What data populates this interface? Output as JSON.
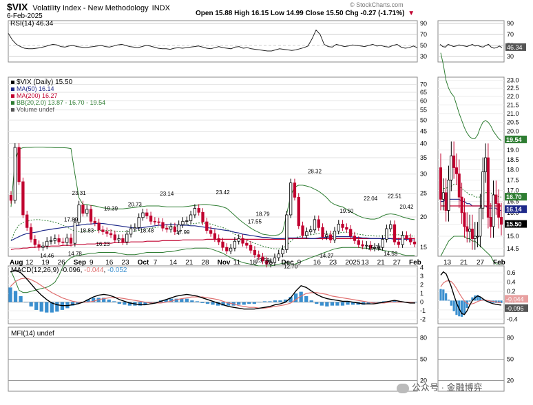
{
  "header": {
    "symbol": "$VIX",
    "name": "Volatility Index - New Methodology",
    "exchange": "INDX",
    "date": "6-Feb-2025",
    "ohlc": "Open 15.88  High 16.15  Low 14.99  Close 15.50  Chg -0.27 (-1.71%)",
    "arrow": "▼",
    "watermark": "© StockCharts.com"
  },
  "colors": {
    "up": "#000000",
    "down": "#c0002f",
    "ma50": "#1f2a8a",
    "ma200": "#c0002f",
    "bb": "#2e7d32",
    "hist": "#3a8fcf",
    "macd": "#000000",
    "signal": "#e07070",
    "grid": "#cccccc"
  },
  "chart_data": [
    {
      "type": "line",
      "panel": "rsi",
      "legend": "RSI(14) 46.34",
      "ylim": [
        20,
        95
      ],
      "ticks": [
        "90",
        "70",
        "50",
        "30"
      ],
      "last_label": "46.34",
      "series": [
        {
          "name": "RSI(14)",
          "values": [
            72,
            60,
            52,
            48,
            45,
            44,
            44,
            45,
            46,
            48,
            50,
            52,
            51,
            48,
            47,
            49,
            50,
            48,
            47,
            46,
            47,
            48,
            49,
            50,
            48,
            47,
            49,
            51,
            52,
            50,
            48,
            47,
            46,
            48,
            50,
            49,
            47,
            45,
            44,
            44,
            43,
            45,
            46,
            45,
            46,
            47,
            48,
            49,
            47,
            45,
            44,
            46,
            48,
            46,
            45,
            44,
            47,
            48,
            45,
            46,
            44,
            43,
            42,
            41,
            40,
            40,
            42,
            44,
            43,
            42,
            41,
            42,
            44,
            46,
            49,
            62,
            78,
            70,
            52,
            48,
            47,
            52,
            50,
            48,
            49,
            51,
            50,
            49,
            48,
            50,
            52,
            49,
            50,
            48,
            47,
            50,
            52,
            47,
            45,
            46,
            49,
            46
          ]
        }
      ]
    },
    {
      "type": "candlestick",
      "panel": "price",
      "legend": [
        "$VIX (Daily) 15.50",
        "MA(50) 16.14",
        "MA(200) 16.27",
        "BB(20,2.0) 13.87 - 16.70 - 19.54",
        "Volume undef"
      ],
      "scale": "log",
      "ylim": [
        13.8,
        75
      ],
      "ticks": [
        "70",
        "65",
        "60",
        "55",
        "50",
        "45",
        "40",
        "35",
        "30",
        "25",
        "20",
        "15"
      ],
      "right_ticks": [
        "23.0",
        "22.5",
        "22.0",
        "21.5",
        "21.0",
        "20.5",
        "20.0",
        "19.5",
        "19.0",
        "18.5",
        "18.0",
        "17.5",
        "17.0",
        "16.5",
        "16.0",
        "15.5",
        "15.0",
        "14.5"
      ],
      "right_badges": [
        {
          "text": "19.54",
          "value": 19.54,
          "color": "#2e7d32"
        },
        {
          "text": "16.70",
          "value": 16.7,
          "color": "#2e7d32"
        },
        {
          "text": "16.14",
          "value": 16.14,
          "color": "#1f2a8a"
        },
        {
          "text": "15.50",
          "value": 15.5,
          "color": "#000000"
        }
      ],
      "x_labels": [
        "Aug",
        "12",
        "19",
        "26",
        "Sep",
        "9",
        "16",
        "23",
        "Oct",
        "7",
        "14",
        "21",
        "28",
        "Nov",
        "11",
        "18",
        "25",
        "Dec",
        "9",
        "16",
        "23",
        "2025",
        "13",
        "21",
        "27",
        "Feb"
      ],
      "zoom_x_labels": [
        "13",
        "21",
        "27",
        "Feb"
      ],
      "close": [
        23.4,
        38.6,
        27.9,
        20.4,
        18.1,
        16.2,
        15.4,
        15.0,
        15.2,
        15.9,
        16.0,
        16.3,
        15.8,
        15.7,
        16.4,
        15.6,
        19.0,
        22.4,
        20.7,
        21.5,
        19.2,
        18.9,
        17.7,
        17.4,
        17.1,
        16.9,
        16.1,
        16.3,
        15.8,
        17.0,
        17.9,
        18.1,
        19.9,
        20.8,
        20.2,
        19.2,
        19.1,
        19.0,
        18.0,
        17.8,
        18.2,
        17.4,
        18.6,
        19.2,
        19.3,
        20.4,
        21.7,
        20.9,
        19.1,
        17.6,
        17.1,
        16.3,
        15.8,
        15.0,
        14.5,
        14.9,
        15.9,
        16.3,
        15.6,
        15.3,
        14.6,
        14.0,
        13.7,
        13.2,
        12.8,
        13.0,
        13.6,
        14.1,
        14.7,
        20.4,
        27.6,
        24.1,
        18.4,
        16.8,
        17.4,
        17.7,
        19.5,
        18.1,
        16.6,
        16.9,
        16.1,
        17.5,
        18.7,
        18.1,
        17.8,
        16.7,
        16.0,
        15.4,
        15.2,
        15.3,
        14.9,
        15.0,
        15.0,
        16.2,
        17.9,
        18.6,
        15.8,
        15.4,
        16.8,
        16.4,
        15.8,
        15.5
      ],
      "ma50": [
        16.0,
        16.3,
        16.6,
        16.9,
        17.1,
        17.2,
        17.3,
        17.4,
        17.6,
        17.7,
        17.8,
        17.9,
        18.0,
        18.1,
        18.2,
        18.3,
        18.4,
        18.5,
        18.6,
        18.7,
        18.7,
        18.8,
        18.8,
        18.8,
        18.7,
        18.6,
        18.5,
        18.4,
        18.3,
        18.2,
        18.1,
        18.0,
        18.0,
        18.1,
        18.2,
        18.3,
        18.4,
        18.5,
        18.5,
        18.6,
        18.6,
        18.6,
        18.5,
        18.5,
        18.5,
        18.4,
        18.4,
        18.3,
        18.2,
        18.1,
        18.0,
        17.9,
        17.8,
        17.7,
        17.6,
        17.5,
        17.3,
        17.2,
        17.0,
        16.9,
        16.8,
        16.7,
        16.6,
        16.5,
        16.5,
        16.4,
        16.3,
        16.3,
        16.3,
        16.4,
        16.4,
        16.4,
        16.4,
        16.4,
        16.4,
        16.3,
        16.3,
        16.4,
        16.5,
        16.5,
        16.6,
        16.6,
        16.6,
        16.6,
        16.6,
        16.6,
        16.5,
        16.5,
        16.4,
        16.4,
        16.3,
        16.3,
        16.3,
        16.3,
        16.3,
        16.3,
        16.2,
        16.2,
        16.2,
        16.2,
        16.1,
        16.1
      ],
      "ma200": [
        14.7,
        14.8,
        14.8,
        14.9,
        14.9,
        15.0,
        15.0,
        15.1,
        15.1,
        15.1,
        15.2,
        15.2,
        15.2,
        15.3,
        15.3,
        15.3,
        15.4,
        15.4,
        15.4,
        15.5,
        15.5,
        15.5,
        15.6,
        15.6,
        15.6,
        15.6,
        15.7,
        15.7,
        15.7,
        15.7,
        15.8,
        15.8,
        15.8,
        15.8,
        15.9,
        15.9,
        15.9,
        15.9,
        16.0,
        16.0,
        16.0,
        16.0,
        16.0,
        16.1,
        16.1,
        16.1,
        16.1,
        16.1,
        16.1,
        16.2,
        16.2,
        16.2,
        16.2,
        16.2,
        16.2,
        16.2,
        16.2,
        16.2,
        16.2,
        16.2,
        16.2,
        16.2,
        16.2,
        16.2,
        16.2,
        16.2,
        16.2,
        16.2,
        16.2,
        16.2,
        16.3,
        16.3,
        16.3,
        16.3,
        16.3,
        16.3,
        16.3,
        16.3,
        16.3,
        16.3,
        16.3,
        16.3,
        16.3,
        16.3,
        16.3,
        16.3,
        16.3,
        16.3,
        16.3,
        16.3,
        16.3,
        16.3,
        16.3,
        16.3,
        16.3,
        16.3,
        16.3,
        16.3,
        16.3,
        16.3,
        16.3,
        16.3
      ],
      "bb_upper": [
        22.0,
        34.0,
        38.0,
        38.5,
        38.6,
        38.6,
        38.7,
        38.7,
        38.7,
        38.6,
        38.6,
        38.5,
        38.5,
        38.5,
        38.4,
        38.2,
        30.0,
        24.0,
        22.5,
        22.5,
        22.3,
        22.2,
        22.0,
        21.8,
        21.7,
        21.6,
        21.6,
        21.6,
        21.6,
        21.7,
        21.8,
        21.9,
        22.0,
        22.1,
        22.2,
        22.2,
        22.2,
        22.2,
        22.1,
        22.0,
        22.0,
        22.0,
        22.0,
        22.0,
        22.1,
        22.2,
        22.3,
        22.4,
        22.5,
        22.5,
        22.4,
        22.3,
        22.2,
        22.0,
        21.7,
        21.0,
        20.3,
        19.6,
        19.0,
        18.5,
        18.0,
        17.6,
        17.3,
        17.0,
        16.9,
        16.8,
        16.8,
        16.9,
        17.4,
        20.5,
        24.5,
        26.5,
        27.0,
        27.0,
        26.8,
        26.5,
        26.0,
        25.5,
        24.8,
        24.0,
        23.0,
        22.5,
        22.2,
        22.0,
        21.5,
        21.0,
        20.6,
        20.2,
        19.9,
        19.7,
        19.6,
        19.6,
        19.8,
        20.2,
        20.5,
        20.6,
        20.5,
        20.3,
        20.0,
        19.8,
        19.6,
        19.5
      ],
      "bb_mid": [
        16.0,
        17.5,
        18.5,
        19.0,
        19.2,
        19.4,
        19.5,
        19.5,
        19.4,
        19.3,
        19.2,
        19.0,
        18.8,
        18.5,
        18.2,
        17.8,
        17.5,
        17.4,
        17.4,
        17.5,
        17.6,
        17.6,
        17.6,
        17.6,
        17.6,
        17.6,
        17.5,
        17.4,
        17.4,
        17.4,
        17.4,
        17.5,
        17.6,
        17.8,
        17.9,
        18.0,
        18.1,
        18.2,
        18.2,
        18.2,
        18.3,
        18.3,
        18.4,
        18.5,
        18.6,
        18.7,
        18.8,
        18.9,
        18.9,
        18.8,
        18.7,
        18.5,
        18.3,
        18.1,
        17.8,
        17.4,
        17.0,
        16.7,
        16.4,
        16.1,
        15.8,
        15.6,
        15.4,
        15.2,
        15.0,
        14.9,
        14.8,
        14.8,
        14.9,
        15.3,
        15.9,
        16.4,
        16.6,
        16.7,
        16.8,
        16.9,
        17.0,
        17.1,
        17.1,
        17.1,
        17.1,
        17.2,
        17.2,
        17.3,
        17.3,
        17.2,
        17.1,
        17.0,
        16.9,
        16.8,
        16.8,
        16.7,
        16.7,
        16.7,
        16.8,
        16.9,
        16.9,
        16.9,
        16.8,
        16.8,
        16.7,
        16.7
      ],
      "bb_lower": [
        12.0,
        11.0,
        10.0,
        9.8,
        9.8,
        9.9,
        10.0,
        10.1,
        10.2,
        10.3,
        10.5,
        10.8,
        11.5,
        12.5,
        13.2,
        13.6,
        13.8,
        13.9,
        14.0,
        14.1,
        14.2,
        14.2,
        14.3,
        14.3,
        14.3,
        14.3,
        14.3,
        14.2,
        14.1,
        14.0,
        14.0,
        14.0,
        14.1,
        14.2,
        14.3,
        14.3,
        14.3,
        14.3,
        14.3,
        14.4,
        14.4,
        14.5,
        14.6,
        14.7,
        14.8,
        14.8,
        14.9,
        14.9,
        14.9,
        14.9,
        14.8,
        14.6,
        14.4,
        14.2,
        13.9,
        13.6,
        13.4,
        13.2,
        13.0,
        12.9,
        12.8,
        12.7,
        12.6,
        12.6,
        12.6,
        12.6,
        12.7,
        12.8,
        12.9,
        13.0,
        12.8,
        12.8,
        13.0,
        13.2,
        13.4,
        13.6,
        13.8,
        14.0,
        14.2,
        14.4,
        14.6,
        14.8,
        14.9,
        15.0,
        15.0,
        15.0,
        15.0,
        15.0,
        14.9,
        14.9,
        14.8,
        14.8,
        14.7,
        14.6,
        14.5,
        14.4,
        14.3,
        14.2,
        14.0,
        13.9,
        13.9,
        13.9
      ],
      "annotations": [
        {
          "text": "23.31",
          "i": 23,
          "v": 24.6
        },
        {
          "text": "17.89",
          "i": 20,
          "v": 19.2
        },
        {
          "text": "18.83",
          "i": 25,
          "v": 17.3
        },
        {
          "text": "19.39",
          "i": 33,
          "v": 21.3
        },
        {
          "text": "16.23",
          "i": 31,
          "v": 15.2
        },
        {
          "text": "20.73",
          "i": 42,
          "v": 22.1
        },
        {
          "text": "18.48",
          "i": 45,
          "v": 17.3
        },
        {
          "text": "23.14",
          "i": 52,
          "v": 24.5
        },
        {
          "text": "17.99",
          "i": 58,
          "v": 17.0
        },
        {
          "text": "23.42",
          "i": 71,
          "v": 24.8
        },
        {
          "text": "17.55",
          "i": 81,
          "v": 18.8
        },
        {
          "text": "18.79",
          "i": 84,
          "v": 20.2
        },
        {
          "text": "13.59",
          "i": 84,
          "v": 13.0
        },
        {
          "text": "12.70",
          "i": 94,
          "v": 12.3
        },
        {
          "text": "28.32",
          "i": 101,
          "v": 30.2
        },
        {
          "text": "14.46",
          "i": 12,
          "v": 13.6
        },
        {
          "text": "14.78",
          "i": 22,
          "v": 13.9
        },
        {
          "text": "14.27",
          "i": 106,
          "v": 13.6
        },
        {
          "text": "19.50",
          "i": 112,
          "v": 20.8
        },
        {
          "text": "15.71",
          "i": 121,
          "v": 14.7
        },
        {
          "text": "22.04",
          "i": 120,
          "v": 23.4
        },
        {
          "text": "22.51",
          "i": 128,
          "v": 23.9
        },
        {
          "text": "14.58",
          "i": 127,
          "v": 13.9
        },
        {
          "text": "20.42",
          "i": 132,
          "v": 21.6
        }
      ]
    },
    {
      "type": "bar",
      "panel": "macd",
      "legend_prefix": "MACD(12,26,9) ",
      "legend_values": [
        "-0.096",
        "-0.044",
        "-0.052"
      ],
      "ylim": [
        -2.5,
        4.2
      ],
      "ticks": [
        "4",
        "3",
        "2",
        "1",
        "0",
        "-1",
        "-2"
      ],
      "zoom_ticks": [
        "0.6",
        "0.4",
        "0.2",
        "0.0",
        "-0.2",
        "-0.4"
      ],
      "zoom_badges": [
        "-0.044",
        "-0.096"
      ],
      "macd": [
        3.5,
        3.7,
        3.4,
        2.8,
        2.1,
        1.4,
        0.8,
        0.3,
        -0.1,
        -0.3,
        -0.4,
        -0.4,
        -0.3,
        -0.2,
        0.0,
        0.3,
        0.6,
        0.8,
        0.9,
        0.8,
        0.6,
        0.3,
        0.1,
        -0.1,
        -0.2,
        -0.3,
        -0.3,
        -0.2,
        -0.1,
        0.1,
        0.3,
        0.5,
        0.7,
        0.8,
        0.9,
        0.8,
        0.7,
        0.5,
        0.3,
        0.1,
        -0.1,
        -0.3,
        -0.5,
        -0.6,
        -0.7,
        -0.8,
        -0.8,
        -0.8,
        -0.7,
        -0.6,
        -0.5,
        -0.3,
        -0.2,
        0.0,
        0.5,
        1.3,
        1.9,
        1.7,
        1.3,
        0.9,
        0.6,
        0.4,
        0.3,
        0.2,
        0.1,
        0.1,
        0.0,
        -0.1,
        -0.2,
        -0.2,
        -0.2,
        -0.1,
        0.0,
        0.1,
        0.2,
        0.1,
        0.0,
        -0.1,
        -0.1
      ],
      "signal": [
        1.8,
        2.4,
        2.7,
        2.8,
        2.6,
        2.3,
        1.9,
        1.5,
        1.1,
        0.8,
        0.5,
        0.3,
        0.1,
        0.0,
        0.0,
        0.0,
        0.1,
        0.3,
        0.4,
        0.5,
        0.5,
        0.5,
        0.4,
        0.3,
        0.2,
        0.1,
        0.0,
        -0.1,
        -0.1,
        -0.1,
        0.0,
        0.1,
        0.3,
        0.4,
        0.5,
        0.6,
        0.6,
        0.6,
        0.5,
        0.4,
        0.3,
        0.1,
        -0.1,
        -0.2,
        -0.4,
        -0.5,
        -0.6,
        -0.6,
        -0.7,
        -0.7,
        -0.6,
        -0.5,
        -0.4,
        -0.3,
        -0.1,
        0.3,
        0.7,
        1.0,
        1.1,
        1.1,
        1.0,
        0.9,
        0.7,
        0.6,
        0.5,
        0.4,
        0.3,
        0.2,
        0.1,
        0.0,
        -0.1,
        -0.1,
        -0.1,
        0.0,
        0.0,
        0.0,
        0.0,
        0.0,
        -0.1
      ]
    },
    {
      "type": "line",
      "panel": "mfi",
      "legend": "MFI(14) undef",
      "ticks": [
        "80",
        "50",
        "20"
      ]
    }
  ],
  "footer": {
    "brand": "公众号 · 金融博弈"
  }
}
